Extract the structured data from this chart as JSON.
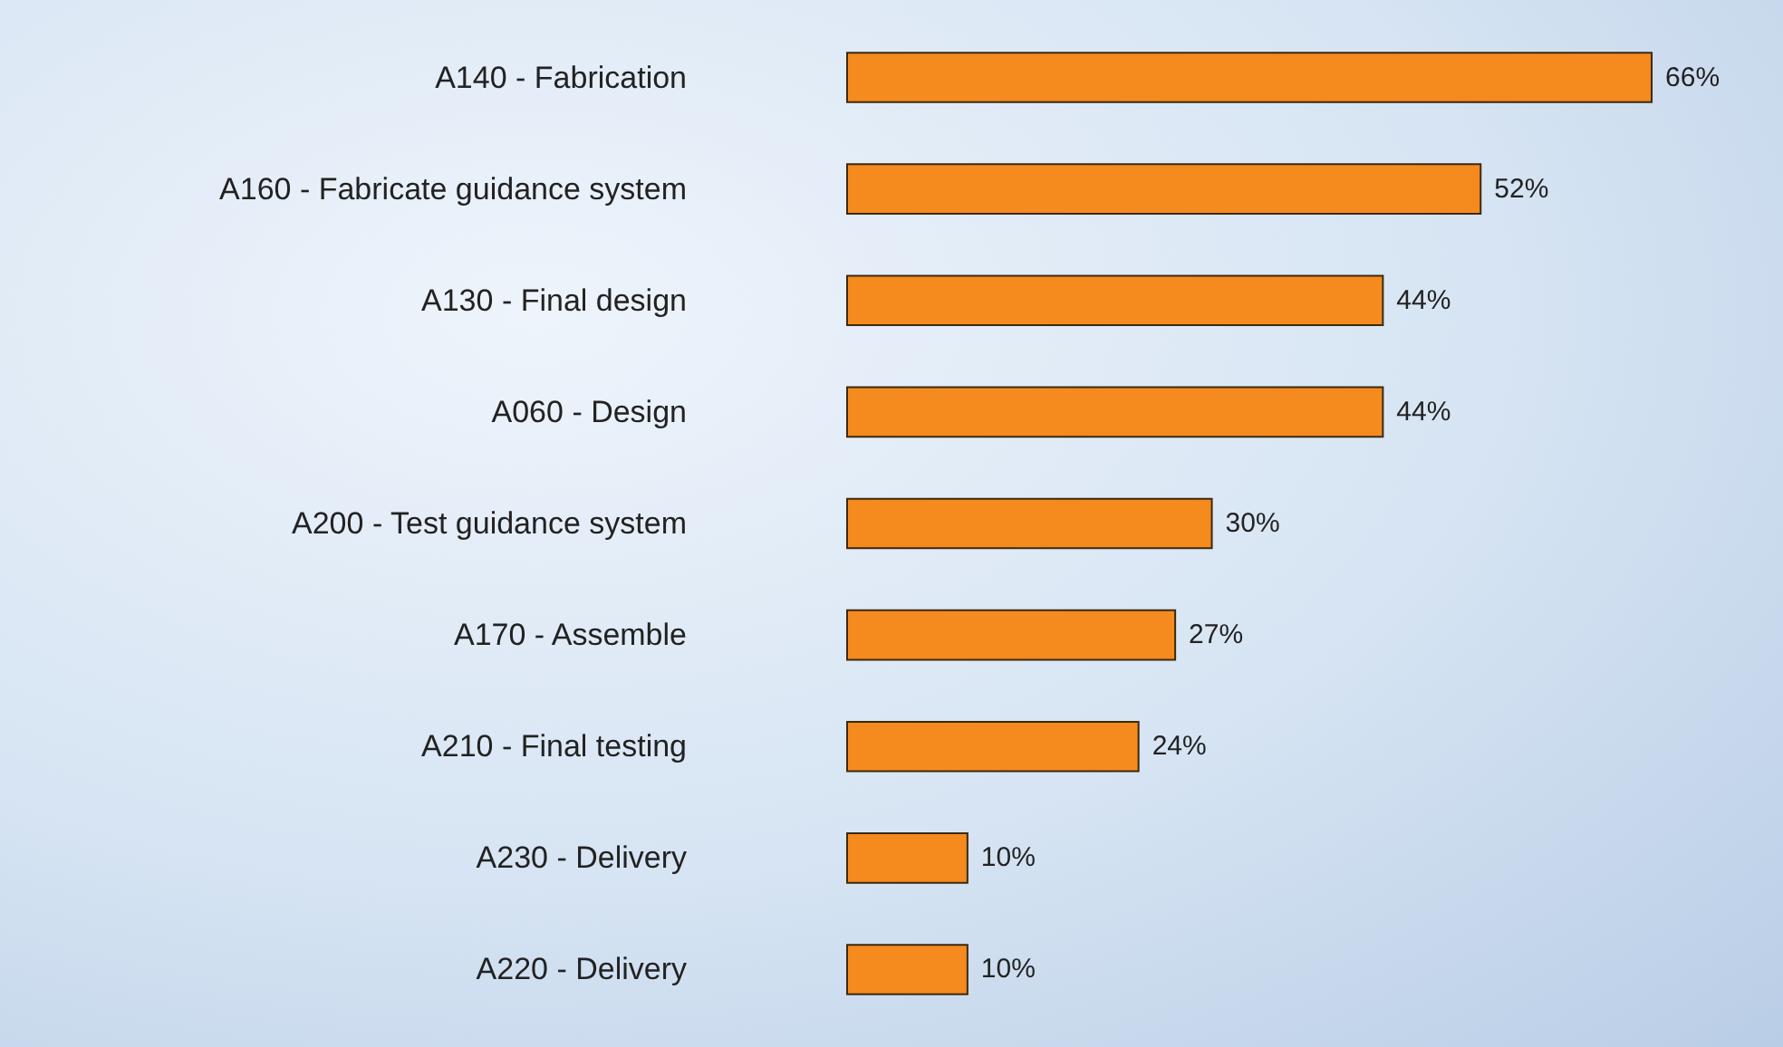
{
  "chart_data": {
    "type": "bar",
    "orientation": "horizontal",
    "categories": [
      "A140 - Fabrication",
      "A160 - Fabricate guidance system",
      "A130 - Final design",
      "A060 - Design",
      "A200 - Test guidance system",
      "A170 - Assemble",
      "A210 - Final testing",
      "A230 - Delivery",
      "A220 - Delivery"
    ],
    "values": [
      66,
      52,
      44,
      44,
      30,
      27,
      24,
      10,
      10
    ],
    "value_labels": [
      "66%",
      "52%",
      "44%",
      "44%",
      "30%",
      "27%",
      "24%",
      "10%",
      "10%"
    ],
    "color": "#f58a1f",
    "tick_labels": "y"
  }
}
